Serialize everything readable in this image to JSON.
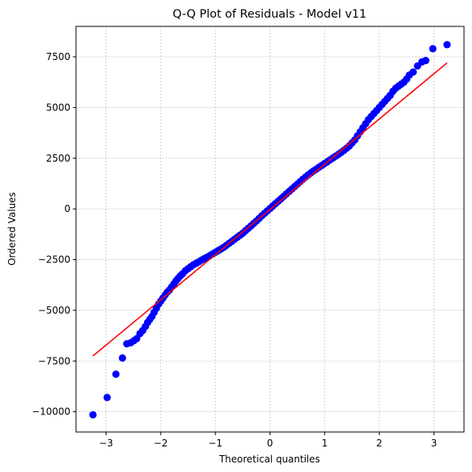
{
  "chart_data": {
    "type": "scatter",
    "title": "Q-Q Plot of Residuals - Model v11",
    "xlabel": "Theoretical quantiles",
    "ylabel": "Ordered Values",
    "xlim": [
      -3.55,
      3.55
    ],
    "ylim": [
      -11000,
      9000
    ],
    "xticks": [
      -3,
      -2,
      -1,
      0,
      1,
      2,
      3
    ],
    "xtick_labels": [
      "−3",
      "−2",
      "−1",
      "0",
      "1",
      "2",
      "3"
    ],
    "yticks": [
      -10000,
      -7500,
      -5000,
      -2500,
      0,
      2500,
      5000,
      7500
    ],
    "ytick_labels": [
      "−10000",
      "−7500",
      "−5000",
      "−2500",
      "0",
      "2500",
      "5000",
      "7500"
    ],
    "grid": true,
    "points_color": "#0000ff",
    "fit_color": "#ff0000",
    "fit_line": {
      "x": [
        -3.24,
        3.24
      ],
      "y": [
        -7250,
        7200
      ]
    },
    "points": [
      [
        -3.24,
        -10150
      ],
      [
        -2.98,
        -9300
      ],
      [
        -2.82,
        -8150
      ],
      [
        -2.7,
        -7350
      ],
      [
        -2.62,
        -6650
      ],
      [
        -2.55,
        -6600
      ],
      [
        -2.49,
        -6500
      ],
      [
        -2.44,
        -6400
      ],
      [
        -2.38,
        -6150
      ],
      [
        -2.33,
        -6000
      ],
      [
        -2.28,
        -5800
      ],
      [
        -2.24,
        -5600
      ],
      [
        -2.2,
        -5450
      ],
      [
        -2.16,
        -5300
      ],
      [
        -2.12,
        -5100
      ],
      [
        -2.08,
        -4900
      ],
      [
        -2.04,
        -4700
      ],
      [
        -2.0,
        -4550
      ],
      [
        -1.96,
        -4400
      ],
      [
        -1.92,
        -4250
      ],
      [
        -1.88,
        -4100
      ],
      [
        -1.84,
        -4000
      ],
      [
        -1.8,
        -3850
      ],
      [
        -1.76,
        -3700
      ],
      [
        -1.72,
        -3550
      ],
      [
        -1.68,
        -3420
      ],
      [
        -1.64,
        -3300
      ],
      [
        -1.6,
        -3200
      ],
      [
        -1.55,
        -3050
      ],
      [
        -1.5,
        -2950
      ],
      [
        -1.45,
        -2850
      ],
      [
        -1.4,
        -2750
      ],
      [
        -1.35,
        -2680
      ],
      [
        -1.3,
        -2600
      ],
      [
        -1.25,
        -2520
      ],
      [
        -1.2,
        -2450
      ],
      [
        -1.15,
        -2380
      ],
      [
        -1.1,
        -2300
      ],
      [
        -1.05,
        -2220
      ],
      [
        -1.0,
        -2140
      ],
      [
        -0.95,
        -2060
      ],
      [
        -0.9,
        -1980
      ],
      [
        -0.85,
        -1900
      ],
      [
        -0.8,
        -1800
      ],
      [
        -0.75,
        -1700
      ],
      [
        -0.7,
        -1600
      ],
      [
        -0.65,
        -1500
      ],
      [
        -0.6,
        -1400
      ],
      [
        -0.55,
        -1300
      ],
      [
        -0.5,
        -1200
      ],
      [
        -0.45,
        -1080
      ],
      [
        -0.4,
        -960
      ],
      [
        -0.35,
        -840
      ],
      [
        -0.3,
        -720
      ],
      [
        -0.25,
        -600
      ],
      [
        -0.2,
        -470
      ],
      [
        -0.15,
        -340
      ],
      [
        -0.1,
        -220
      ],
      [
        -0.05,
        -100
      ],
      [
        0.0,
        20
      ],
      [
        0.05,
        140
      ],
      [
        0.1,
        260
      ],
      [
        0.15,
        380
      ],
      [
        0.2,
        500
      ],
      [
        0.25,
        620
      ],
      [
        0.3,
        740
      ],
      [
        0.35,
        860
      ],
      [
        0.4,
        980
      ],
      [
        0.45,
        1100
      ],
      [
        0.5,
        1220
      ],
      [
        0.55,
        1340
      ],
      [
        0.6,
        1460
      ],
      [
        0.65,
        1570
      ],
      [
        0.7,
        1680
      ],
      [
        0.75,
        1780
      ],
      [
        0.8,
        1880
      ],
      [
        0.85,
        1970
      ],
      [
        0.9,
        2060
      ],
      [
        0.95,
        2150
      ],
      [
        1.0,
        2240
      ],
      [
        1.05,
        2330
      ],
      [
        1.1,
        2420
      ],
      [
        1.15,
        2510
      ],
      [
        1.2,
        2600
      ],
      [
        1.25,
        2690
      ],
      [
        1.3,
        2780
      ],
      [
        1.35,
        2880
      ],
      [
        1.4,
        2990
      ],
      [
        1.45,
        3100
      ],
      [
        1.5,
        3250
      ],
      [
        1.55,
        3400
      ],
      [
        1.6,
        3600
      ],
      [
        1.65,
        3800
      ],
      [
        1.7,
        4000
      ],
      [
        1.75,
        4200
      ],
      [
        1.8,
        4400
      ],
      [
        1.85,
        4550
      ],
      [
        1.9,
        4700
      ],
      [
        1.95,
        4850
      ],
      [
        2.0,
        5000
      ],
      [
        2.05,
        5150
      ],
      [
        2.1,
        5300
      ],
      [
        2.15,
        5450
      ],
      [
        2.2,
        5600
      ],
      [
        2.25,
        5800
      ],
      [
        2.3,
        5950
      ],
      [
        2.35,
        6050
      ],
      [
        2.4,
        6150
      ],
      [
        2.45,
        6250
      ],
      [
        2.5,
        6400
      ],
      [
        2.55,
        6600
      ],
      [
        2.62,
        6750
      ],
      [
        2.7,
        7050
      ],
      [
        2.78,
        7250
      ],
      [
        2.85,
        7320
      ],
      [
        2.98,
        7900
      ],
      [
        3.24,
        8100
      ]
    ]
  }
}
